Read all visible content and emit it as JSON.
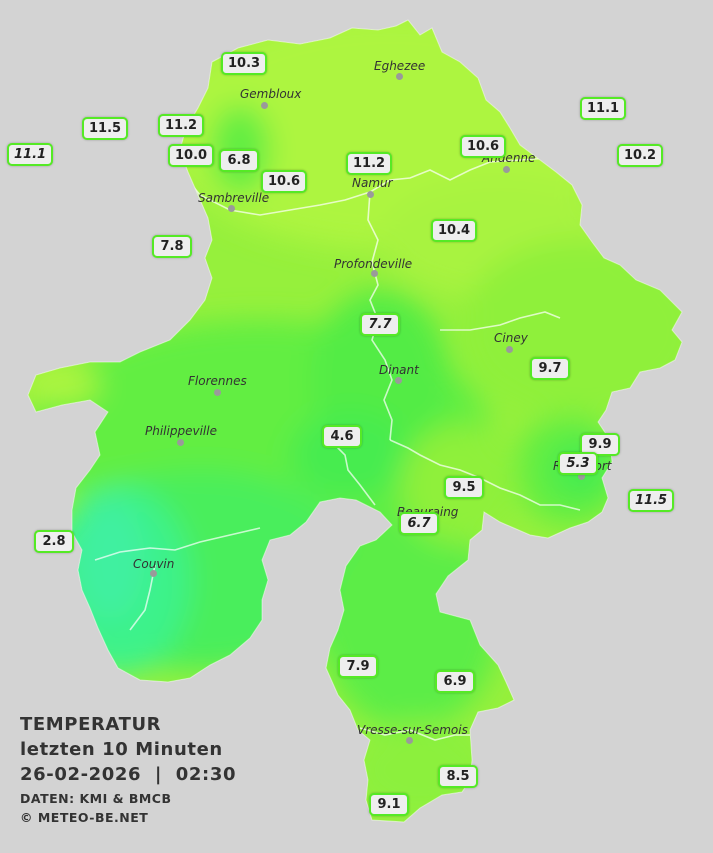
{
  "legend": {
    "title": "TEMPERATUR",
    "subtitle": "letzten 10 Minuten",
    "datetime": "26-02-2026  |  02:30",
    "source": "DATEN: KMI & BMCB",
    "copyright": "© METEO-BE.NET"
  },
  "cities": [
    {
      "name": "Eghezee"
    },
    {
      "name": "Gembloux"
    },
    {
      "name": "Andenne"
    },
    {
      "name": "Namur"
    },
    {
      "name": "Sambreville"
    },
    {
      "name": "Profondeville"
    },
    {
      "name": "Ciney"
    },
    {
      "name": "Dinant"
    },
    {
      "name": "Florennes"
    },
    {
      "name": "Philippeville"
    },
    {
      "name": "Rochefort"
    },
    {
      "name": "Beauraing"
    },
    {
      "name": "Couvin"
    },
    {
      "name": "Vresse-sur-Semois"
    }
  ],
  "stations": [
    {
      "value": "10.3"
    },
    {
      "value": "11.2"
    },
    {
      "value": "11.5"
    },
    {
      "value": "11.1"
    },
    {
      "value": "10.0"
    },
    {
      "value": "6.8"
    },
    {
      "value": "10.6"
    },
    {
      "value": "11.2"
    },
    {
      "value": "10.6"
    },
    {
      "value": "11.1"
    },
    {
      "value": "10.2"
    },
    {
      "value": "10.4"
    },
    {
      "value": "7.8"
    },
    {
      "value": "7.7"
    },
    {
      "value": "9.7"
    },
    {
      "value": "4.6"
    },
    {
      "value": "9.9"
    },
    {
      "value": "5.3"
    },
    {
      "value": "9.5"
    },
    {
      "value": "11.5"
    },
    {
      "value": "6.7"
    },
    {
      "value": "2.8"
    },
    {
      "value": "7.9"
    },
    {
      "value": "6.9"
    },
    {
      "value": "8.5"
    },
    {
      "value": "9.1"
    }
  ],
  "colors": {
    "background": "#d3d3d3",
    "warm": "#adf541",
    "mild": "#8ff03a",
    "cool": "#50ec4a",
    "cold": "#3ef27a",
    "coldest": "#40f0a0",
    "station_border": "#55ea25"
  }
}
